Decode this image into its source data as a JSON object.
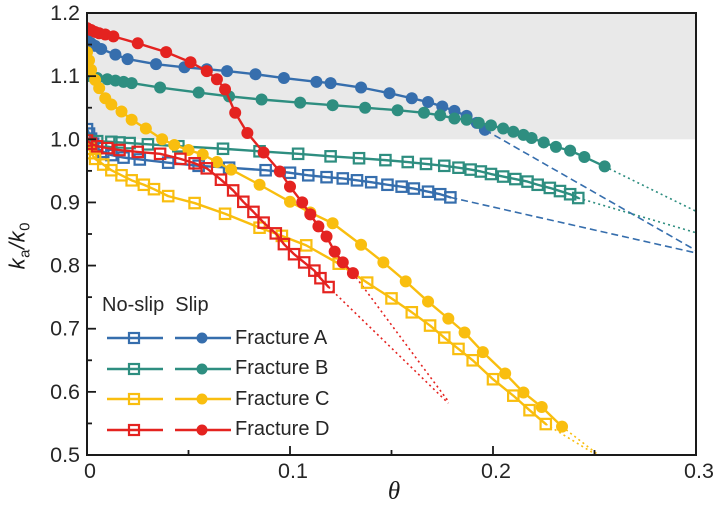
{
  "chart_data": {
    "type": "line",
    "title": "",
    "xlabel": "θ",
    "ylabel_parts": {
      "k1": "k",
      "sub1": "a",
      "slash": "/",
      "k2": "k",
      "sub2": "0"
    },
    "xlim": [
      0,
      0.3
    ],
    "ylim": [
      0.5,
      1.2
    ],
    "grid": false,
    "frame_color": "#1a1a1a",
    "text_color": "#262626",
    "shaded_region": {
      "y_min": 1.0,
      "y_max": 1.2,
      "color": "#e9e9e9"
    },
    "x_ticks": {
      "major": [
        {
          "v": 0,
          "label": "0"
        },
        {
          "v": 0.1,
          "label": "0.1"
        },
        {
          "v": 0.2,
          "label": "0.2"
        },
        {
          "v": 0.3,
          "label": "0.3"
        }
      ],
      "minor": [
        0.05,
        0.15,
        0.25
      ]
    },
    "y_ticks": {
      "major": [
        {
          "v": 0.5,
          "label": "0.5"
        },
        {
          "v": 0.6,
          "label": "0.6"
        },
        {
          "v": 0.7,
          "label": "0.7"
        },
        {
          "v": 0.8,
          "label": "0.8"
        },
        {
          "v": 0.9,
          "label": "0.9"
        },
        {
          "v": 1.0,
          "label": "1.0"
        },
        {
          "v": 1.1,
          "label": "1.1"
        },
        {
          "v": 1.2,
          "label": "1.2"
        }
      ],
      "minor": [
        0.55,
        0.65,
        0.75,
        0.85,
        0.95,
        1.05,
        1.15
      ]
    },
    "colors": {
      "fracture_a": "#366ead",
      "fracture_b": "#2e8e80",
      "fracture_c": "#f9be0f",
      "fracture_d": "#e42320"
    },
    "extensions": [
      {
        "name": "fracture-a-no-slip-extrapolation",
        "color": "#366ead",
        "style": "dashed",
        "points": [
          [
            0.179,
            0.908
          ],
          [
            0.3,
            0.82
          ]
        ]
      },
      {
        "name": "fracture-a-slip-extrapolation",
        "color": "#366ead",
        "style": "dashed",
        "points": [
          [
            0.196,
            1.015
          ],
          [
            0.3,
            0.824
          ]
        ]
      },
      {
        "name": "fracture-b-no-slip-extrapolation",
        "color": "#2e8e80",
        "style": "dotted",
        "points": [
          [
            0.242,
            0.907
          ],
          [
            0.3,
            0.852
          ]
        ]
      },
      {
        "name": "fracture-b-slip-extrapolation",
        "color": "#2e8e80",
        "style": "dotted",
        "points": [
          [
            0.255,
            0.957
          ],
          [
            0.3,
            0.886
          ]
        ]
      },
      {
        "name": "fracture-c-no-slip-extrapolation",
        "color": "#f9be0f",
        "style": "dotted",
        "points": [
          [
            0.226,
            0.549
          ],
          [
            0.251,
            0.5
          ]
        ]
      },
      {
        "name": "fracture-c-slip-extrapolation",
        "color": "#f9be0f",
        "style": "dotted",
        "points": [
          [
            0.234,
            0.545
          ],
          [
            0.252,
            0.5
          ]
        ]
      },
      {
        "name": "fracture-d-no-slip-extrapolation",
        "color": "#e42320",
        "style": "dotted",
        "points": [
          [
            0.119,
            0.766
          ],
          [
            0.178,
            0.582
          ]
        ]
      },
      {
        "name": "fracture-d-slip-extrapolation",
        "color": "#e42320",
        "style": "dotted",
        "points": [
          [
            0.131,
            0.788
          ],
          [
            0.178,
            0.585
          ]
        ]
      }
    ],
    "series": [
      {
        "name": "fracture-a-no-slip",
        "label": "Fracture A (No-slip)",
        "color": "#366ead",
        "marker": "square-open",
        "line": "solid",
        "points": [
          [
            0,
            1.016
          ],
          [
            0.001,
            1.009
          ],
          [
            0.002,
            1.001
          ],
          [
            0.003,
            0.993
          ],
          [
            0.005,
            0.986
          ],
          [
            0.008,
            0.98
          ],
          [
            0.012,
            0.975
          ],
          [
            0.018,
            0.971
          ],
          [
            0.026,
            0.968
          ],
          [
            0.04,
            0.963
          ],
          [
            0.055,
            0.958
          ],
          [
            0.07,
            0.955
          ],
          [
            0.088,
            0.951
          ],
          [
            0.1,
            0.947
          ],
          [
            0.109,
            0.943
          ],
          [
            0.118,
            0.94
          ],
          [
            0.126,
            0.938
          ],
          [
            0.133,
            0.935
          ],
          [
            0.14,
            0.932
          ],
          [
            0.148,
            0.928
          ],
          [
            0.155,
            0.925
          ],
          [
            0.161,
            0.922
          ],
          [
            0.168,
            0.917
          ],
          [
            0.174,
            0.913
          ],
          [
            0.179,
            0.908
          ]
        ]
      },
      {
        "name": "fracture-a-slip",
        "label": "Fracture A (Slip)",
        "color": "#366ead",
        "marker": "circle",
        "line": "solid",
        "points": [
          [
            0,
            1.157
          ],
          [
            0.002,
            1.152
          ],
          [
            0.004,
            1.148
          ],
          [
            0.007,
            1.143
          ],
          [
            0.014,
            1.134
          ],
          [
            0.02,
            1.127
          ],
          [
            0.034,
            1.119
          ],
          [
            0.048,
            1.114
          ],
          [
            0.059,
            1.111
          ],
          [
            0.069,
            1.108
          ],
          [
            0.083,
            1.103
          ],
          [
            0.097,
            1.097
          ],
          [
            0.113,
            1.091
          ],
          [
            0.12,
            1.089
          ],
          [
            0.135,
            1.082
          ],
          [
            0.149,
            1.073
          ],
          [
            0.16,
            1.065
          ],
          [
            0.168,
            1.059
          ],
          [
            0.175,
            1.052
          ],
          [
            0.181,
            1.045
          ],
          [
            0.187,
            1.037
          ],
          [
            0.192,
            1.026
          ],
          [
            0.196,
            1.015
          ]
        ]
      },
      {
        "name": "fracture-b-no-slip",
        "label": "Fracture B (No-slip)",
        "color": "#2e8e80",
        "marker": "square-open",
        "line": "solid",
        "points": [
          [
            0,
            0.999
          ],
          [
            0.005,
            0.997
          ],
          [
            0.012,
            0.996
          ],
          [
            0.016,
            0.995
          ],
          [
            0.021,
            0.994
          ],
          [
            0.03,
            0.992
          ],
          [
            0.045,
            0.989
          ],
          [
            0.067,
            0.985
          ],
          [
            0.085,
            0.981
          ],
          [
            0.104,
            0.977
          ],
          [
            0.12,
            0.973
          ],
          [
            0.134,
            0.97
          ],
          [
            0.147,
            0.967
          ],
          [
            0.158,
            0.964
          ],
          [
            0.167,
            0.961
          ],
          [
            0.176,
            0.958
          ],
          [
            0.183,
            0.955
          ],
          [
            0.189,
            0.952
          ],
          [
            0.194,
            0.949
          ],
          [
            0.199,
            0.945
          ],
          [
            0.205,
            0.941
          ],
          [
            0.211,
            0.937
          ],
          [
            0.217,
            0.933
          ],
          [
            0.222,
            0.928
          ],
          [
            0.228,
            0.923
          ],
          [
            0.233,
            0.918
          ],
          [
            0.238,
            0.913
          ],
          [
            0.242,
            0.907
          ]
        ]
      },
      {
        "name": "fracture-b-slip",
        "label": "Fracture B (Slip)",
        "color": "#2e8e80",
        "marker": "circle",
        "line": "solid",
        "points": [
          [
            0,
            1.1
          ],
          [
            0.005,
            1.097
          ],
          [
            0.01,
            1.095
          ],
          [
            0.014,
            1.093
          ],
          [
            0.018,
            1.091
          ],
          [
            0.022,
            1.089
          ],
          [
            0.036,
            1.082
          ],
          [
            0.055,
            1.074
          ],
          [
            0.07,
            1.068
          ],
          [
            0.086,
            1.063
          ],
          [
            0.105,
            1.058
          ],
          [
            0.121,
            1.054
          ],
          [
            0.137,
            1.05
          ],
          [
            0.153,
            1.046
          ],
          [
            0.166,
            1.042
          ],
          [
            0.174,
            1.038
          ],
          [
            0.181,
            1.033
          ],
          [
            0.187,
            1.031
          ],
          [
            0.193,
            1.026
          ],
          [
            0.199,
            1.022
          ],
          [
            0.205,
            1.017
          ],
          [
            0.21,
            1.012
          ],
          [
            0.215,
            1.007
          ],
          [
            0.219,
            1.002
          ],
          [
            0.225,
            0.995
          ],
          [
            0.231,
            0.988
          ],
          [
            0.238,
            0.982
          ],
          [
            0.245,
            0.972
          ],
          [
            0.255,
            0.957
          ]
        ]
      },
      {
        "name": "fracture-c-no-slip",
        "label": "Fracture C (No-slip)",
        "color": "#f9be0f",
        "marker": "square-open",
        "line": "solid",
        "points": [
          [
            0,
            0.992
          ],
          [
            0.001,
            0.985
          ],
          [
            0.002,
            0.978
          ],
          [
            0.004,
            0.969
          ],
          [
            0.008,
            0.96
          ],
          [
            0.012,
            0.951
          ],
          [
            0.017,
            0.943
          ],
          [
            0.022,
            0.935
          ],
          [
            0.028,
            0.928
          ],
          [
            0.033,
            0.921
          ],
          [
            0.04,
            0.91
          ],
          [
            0.053,
            0.899
          ],
          [
            0.068,
            0.882
          ],
          [
            0.085,
            0.86
          ],
          [
            0.096,
            0.847
          ],
          [
            0.108,
            0.832
          ],
          [
            0.124,
            0.803
          ],
          [
            0.138,
            0.773
          ],
          [
            0.15,
            0.748
          ],
          [
            0.16,
            0.726
          ],
          [
            0.169,
            0.705
          ],
          [
            0.176,
            0.686
          ],
          [
            0.183,
            0.668
          ],
          [
            0.19,
            0.65
          ],
          [
            0.2,
            0.62
          ],
          [
            0.21,
            0.594
          ],
          [
            0.218,
            0.571
          ],
          [
            0.226,
            0.549
          ]
        ]
      },
      {
        "name": "fracture-c-slip",
        "label": "Fracture C (Slip)",
        "color": "#f9be0f",
        "marker": "circle",
        "line": "solid",
        "points": [
          [
            0,
            1.138
          ],
          [
            0.001,
            1.125
          ],
          [
            0.002,
            1.11
          ],
          [
            0.004,
            1.094
          ],
          [
            0.006,
            1.081
          ],
          [
            0.009,
            1.065
          ],
          [
            0.012,
            1.055
          ],
          [
            0.017,
            1.044
          ],
          [
            0.022,
            1.031
          ],
          [
            0.029,
            1.017
          ],
          [
            0.037,
            1.0
          ],
          [
            0.043,
            0.991
          ],
          [
            0.05,
            0.983
          ],
          [
            0.057,
            0.976
          ],
          [
            0.064,
            0.964
          ],
          [
            0.071,
            0.952
          ],
          [
            0.085,
            0.928
          ],
          [
            0.1,
            0.901
          ],
          [
            0.11,
            0.884
          ],
          [
            0.121,
            0.867
          ],
          [
            0.135,
            0.833
          ],
          [
            0.146,
            0.805
          ],
          [
            0.157,
            0.775
          ],
          [
            0.168,
            0.743
          ],
          [
            0.178,
            0.716
          ],
          [
            0.186,
            0.694
          ],
          [
            0.195,
            0.663
          ],
          [
            0.206,
            0.629
          ],
          [
            0.215,
            0.599
          ],
          [
            0.224,
            0.576
          ],
          [
            0.234,
            0.545
          ]
        ]
      },
      {
        "name": "fracture-d-no-slip",
        "label": "Fracture D (No-slip)",
        "color": "#e42320",
        "marker": "square-open",
        "line": "solid",
        "points": [
          [
            0,
            0.998
          ],
          [
            0.002,
            0.993
          ],
          [
            0.005,
            0.989
          ],
          [
            0.01,
            0.986
          ],
          [
            0.016,
            0.983
          ],
          [
            0.025,
            0.98
          ],
          [
            0.036,
            0.977
          ],
          [
            0.046,
            0.969
          ],
          [
            0.053,
            0.962
          ],
          [
            0.059,
            0.954
          ],
          [
            0.066,
            0.936
          ],
          [
            0.072,
            0.919
          ],
          [
            0.077,
            0.901
          ],
          [
            0.082,
            0.885
          ],
          [
            0.087,
            0.868
          ],
          [
            0.093,
            0.851
          ],
          [
            0.097,
            0.834
          ],
          [
            0.102,
            0.818
          ],
          [
            0.107,
            0.805
          ],
          [
            0.112,
            0.792
          ],
          [
            0.115,
            0.78
          ],
          [
            0.119,
            0.766
          ]
        ]
      },
      {
        "name": "fracture-d-slip",
        "label": "Fracture D (Slip)",
        "color": "#e42320",
        "marker": "circle",
        "line": "solid",
        "points": [
          [
            0,
            1.176
          ],
          [
            0.002,
            1.173
          ],
          [
            0.004,
            1.17
          ],
          [
            0.006,
            1.168
          ],
          [
            0.009,
            1.166
          ],
          [
            0.013,
            1.163
          ],
          [
            0.025,
            1.152
          ],
          [
            0.039,
            1.138
          ],
          [
            0.051,
            1.122
          ],
          [
            0.059,
            1.108
          ],
          [
            0.064,
            1.095
          ],
          [
            0.068,
            1.079
          ],
          [
            0.073,
            1.042
          ],
          [
            0.079,
            1.01
          ],
          [
            0.087,
            0.979
          ],
          [
            0.095,
            0.949
          ],
          [
            0.1,
            0.925
          ],
          [
            0.106,
            0.9
          ],
          [
            0.11,
            0.881
          ],
          [
            0.114,
            0.862
          ],
          [
            0.118,
            0.846
          ],
          [
            0.122,
            0.822
          ],
          [
            0.126,
            0.805
          ],
          [
            0.131,
            0.788
          ]
        ]
      }
    ],
    "legend": {
      "position": "bottom-left-inside",
      "no_slip_header": "No-slip",
      "slip_header": "Slip",
      "rows": [
        {
          "label": "Fracture A",
          "color": "#366ead"
        },
        {
          "label": "Fracture B",
          "color": "#2e8e80"
        },
        {
          "label": "Fracture C",
          "color": "#f9be0f"
        },
        {
          "label": "Fracture D",
          "color": "#e42320"
        }
      ]
    }
  }
}
